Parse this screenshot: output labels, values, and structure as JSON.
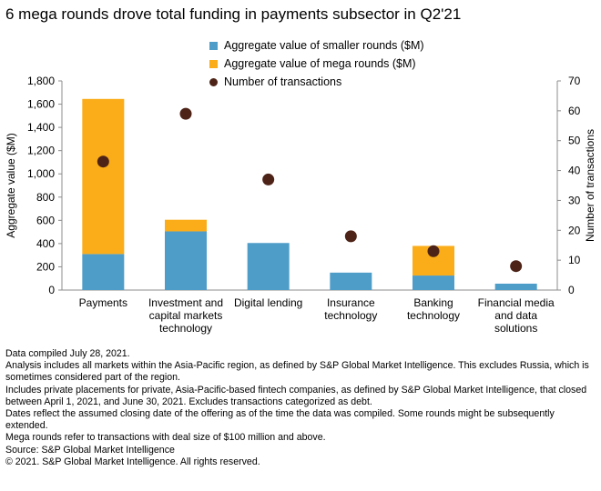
{
  "title": "6 mega rounds drove total funding in payments subsector in Q2'21",
  "colors": {
    "smaller": "#4e9dc9",
    "mega": "#fbac19",
    "transactions": "#4d2317",
    "axis": "#8c8c8c"
  },
  "chart_data": {
    "type": "bar",
    "stacked": true,
    "categories": [
      [
        "Payments"
      ],
      [
        "Investment and",
        "capital markets",
        "technology"
      ],
      [
        "Digital lending"
      ],
      [
        "Insurance",
        "technology"
      ],
      [
        "Banking",
        "technology"
      ],
      [
        "Financial media",
        "and data",
        "solutions"
      ]
    ],
    "series": [
      {
        "name": "Aggregate value of smaller rounds ($M)",
        "type": "bar",
        "axis": "left",
        "values": [
          310,
          505,
          405,
          150,
          125,
          55
        ]
      },
      {
        "name": "Aggregate value of mega rounds ($M)",
        "type": "bar",
        "axis": "left",
        "values": [
          1335,
          100,
          0,
          0,
          255,
          0
        ]
      },
      {
        "name": "Number of transactions",
        "type": "scatter",
        "axis": "right",
        "values": [
          43,
          59,
          37,
          18,
          13,
          8
        ]
      }
    ],
    "ylabel": "Aggregate value ($M)",
    "ylim": [
      0,
      1800
    ],
    "yticks": [
      "0",
      "200",
      "400",
      "600",
      "800",
      "1,000",
      "1,200",
      "1,400",
      "1,600",
      "1,800"
    ],
    "y2label": "Number of transactions",
    "y2lim": [
      0,
      70
    ],
    "y2ticks": [
      "0",
      "10",
      "20",
      "30",
      "40",
      "50",
      "60",
      "70"
    ],
    "legend_position": "top-center",
    "grid": false
  },
  "notes": [
    "Data compiled July 28, 2021.",
    "Analysis includes all markets within the Asia-Pacific region, as defined by S&P Global Market Intelligence. This excludes Russia, which is sometimes considered part of the region.",
    "Includes private placements for private, Asia-Pacific-based fintech companies, as defined by S&P Global Market Intelligence, that closed between April 1, 2021, and June 30, 2021. Excludes transactions categorized as debt.",
    "Dates reflect the assumed closing date of the offering as of the time the data was compiled. Some rounds might be subsequently extended.",
    "Mega rounds refer to transactions with deal size of $100 million and above.",
    "Source: S&P Global Market Intelligence",
    "© 2021. S&P Global Market Intelligence. All rights reserved."
  ]
}
